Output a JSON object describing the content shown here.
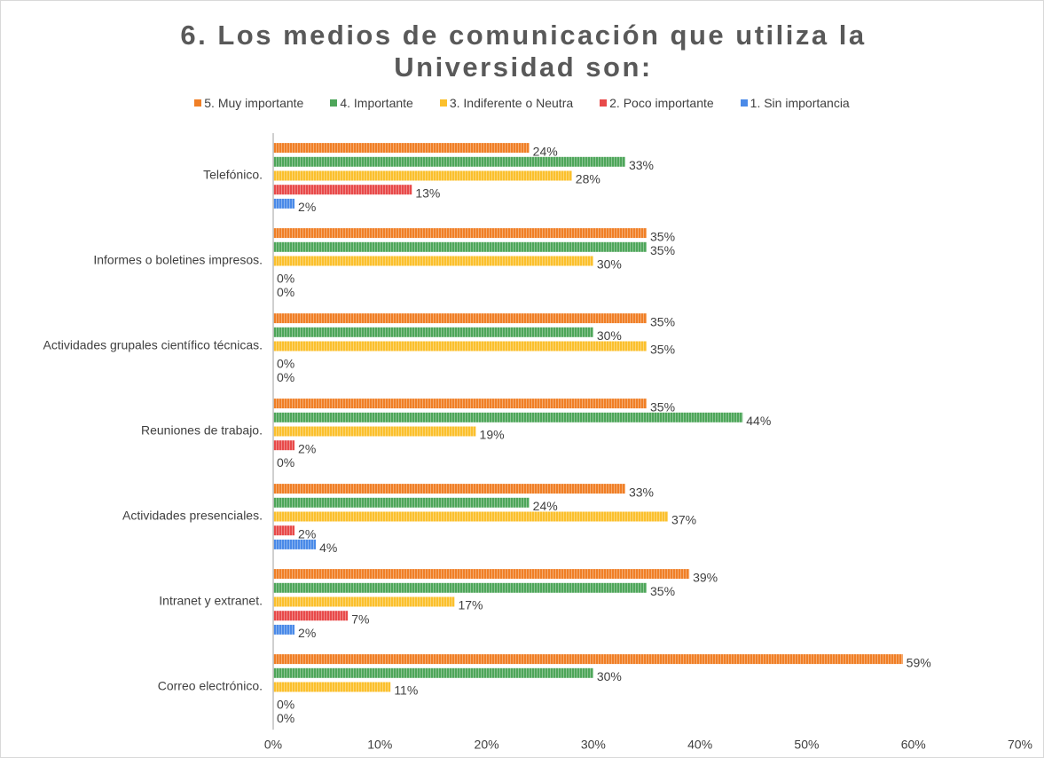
{
  "chart_data": {
    "type": "bar",
    "orientation": "horizontal",
    "title": "6. Los medios de comunicación que utiliza la Universidad son:",
    "categories": [
      "Telefónico.",
      "Informes o boletines impresos.",
      "Actividades grupales científico técnicas.",
      "Reuniones de trabajo.",
      "Actividades presenciales.",
      "Intranet y extranet.",
      "Correo electrónico."
    ],
    "series": [
      {
        "name": "5. Muy importante",
        "color": "#f07f26",
        "values": [
          24,
          35,
          35,
          35,
          33,
          39,
          59
        ],
        "value_labels": [
          "24%",
          "35%",
          "35%",
          "35%",
          "33%",
          "39%",
          "59%"
        ]
      },
      {
        "name": "4. Importante",
        "color": "#4ea65a",
        "values": [
          33,
          35,
          30,
          44,
          24,
          35,
          30
        ],
        "value_labels": [
          "33%",
          "35%",
          "30%",
          "44%",
          "24%",
          "35%",
          "30%"
        ]
      },
      {
        "name": "3. Indiferente o Neutra",
        "color": "#fbc02d",
        "values": [
          28,
          30,
          35,
          19,
          37,
          17,
          11
        ],
        "value_labels": [
          "28%",
          "30%",
          "35%",
          "19%",
          "37%",
          "17%",
          "11%"
        ]
      },
      {
        "name": "2. Poco importante",
        "color": "#e84a4a",
        "values": [
          13,
          0,
          0,
          2,
          2,
          7,
          0
        ],
        "value_labels": [
          "13%",
          "0%",
          "0%",
          "2%",
          "2%",
          "7%",
          "0%"
        ]
      },
      {
        "name": "1. Sin importancia",
        "color": "#4a8ae8",
        "values": [
          2,
          0,
          0,
          0,
          4,
          2,
          0
        ],
        "value_labels": [
          "2%",
          "0%",
          "0%",
          "0%",
          "4%",
          "2%",
          "0%"
        ]
      }
    ],
    "xlim": [
      0,
      70
    ],
    "xticks": [
      {
        "value": 0,
        "label": "0%"
      },
      {
        "value": 10,
        "label": "10%"
      },
      {
        "value": 20,
        "label": "20%"
      },
      {
        "value": 30,
        "label": "30%"
      },
      {
        "value": 40,
        "label": "40%"
      },
      {
        "value": 50,
        "label": "50%"
      },
      {
        "value": 60,
        "label": "60%"
      },
      {
        "value": 70,
        "label": "70%"
      }
    ],
    "legend": "top",
    "grid": false
  }
}
